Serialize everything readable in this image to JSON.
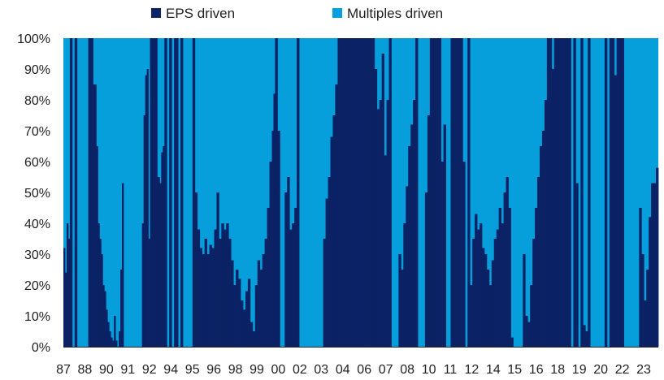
{
  "chart_data": {
    "type": "bar",
    "stacked": true,
    "normalized": true,
    "legend": [
      {
        "name": "EPS driven",
        "color": "#0b2265"
      },
      {
        "name": "Multiples driven",
        "color": "#079fdb"
      }
    ],
    "legend_position": "top",
    "ylim": [
      0,
      100
    ],
    "yticks": [
      "0%",
      "10%",
      "20%",
      "30%",
      "40%",
      "50%",
      "60%",
      "70%",
      "80%",
      "90%",
      "100%"
    ],
    "x_tick_labels": [
      "87",
      "88",
      "90",
      "91",
      "92",
      "94",
      "95",
      "96",
      "98",
      "99",
      "00",
      "02",
      "03",
      "04",
      "06",
      "07",
      "08",
      "10",
      "11",
      "12",
      "14",
      "15",
      "16",
      "18",
      "19",
      "20",
      "22",
      "23"
    ],
    "x_range": [
      1987.0,
      2024.1
    ],
    "series_name": "EPS driven",
    "points": [
      [
        1987.0,
        32
      ],
      [
        1987.1,
        24
      ],
      [
        1987.2,
        40
      ],
      [
        1987.3,
        35
      ],
      [
        1987.4,
        100
      ],
      [
        1987.55,
        0
      ],
      [
        1987.7,
        100
      ],
      [
        1987.85,
        0
      ],
      [
        1988.0,
        0
      ],
      [
        1988.2,
        0
      ],
      [
        1988.4,
        0
      ],
      [
        1988.55,
        100
      ],
      [
        1988.7,
        100
      ],
      [
        1988.85,
        85
      ],
      [
        1988.95,
        85
      ],
      [
        1989.05,
        65
      ],
      [
        1989.15,
        40
      ],
      [
        1989.25,
        35
      ],
      [
        1989.35,
        30
      ],
      [
        1989.45,
        20
      ],
      [
        1989.55,
        18
      ],
      [
        1989.65,
        12
      ],
      [
        1989.75,
        8
      ],
      [
        1989.85,
        5
      ],
      [
        1989.95,
        3
      ],
      [
        1990.05,
        2
      ],
      [
        1990.15,
        10
      ],
      [
        1990.25,
        2
      ],
      [
        1990.35,
        0
      ],
      [
        1990.45,
        5
      ],
      [
        1990.55,
        25
      ],
      [
        1990.65,
        53
      ],
      [
        1990.75,
        0
      ],
      [
        1990.85,
        0
      ],
      [
        1991.0,
        0
      ],
      [
        1991.2,
        0
      ],
      [
        1991.4,
        0
      ],
      [
        1991.6,
        0
      ],
      [
        1991.8,
        0
      ],
      [
        1991.9,
        40
      ],
      [
        1992.0,
        75
      ],
      [
        1992.1,
        88
      ],
      [
        1992.2,
        90
      ],
      [
        1992.3,
        35
      ],
      [
        1992.4,
        100
      ],
      [
        1992.55,
        100
      ],
      [
        1992.7,
        100
      ],
      [
        1992.85,
        55
      ],
      [
        1993.0,
        53
      ],
      [
        1993.1,
        63
      ],
      [
        1993.2,
        65
      ],
      [
        1993.3,
        100
      ],
      [
        1993.45,
        0
      ],
      [
        1993.6,
        100
      ],
      [
        1993.75,
        0
      ],
      [
        1993.9,
        100
      ],
      [
        1994.05,
        100
      ],
      [
        1994.15,
        0
      ],
      [
        1994.3,
        100
      ],
      [
        1994.45,
        0
      ],
      [
        1994.6,
        0
      ],
      [
        1994.75,
        0
      ],
      [
        1994.9,
        0
      ],
      [
        1995.05,
        100
      ],
      [
        1995.2,
        50
      ],
      [
        1995.35,
        38
      ],
      [
        1995.5,
        32
      ],
      [
        1995.65,
        30
      ],
      [
        1995.8,
        35
      ],
      [
        1995.95,
        30
      ],
      [
        1996.1,
        33
      ],
      [
        1996.25,
        32
      ],
      [
        1996.4,
        38
      ],
      [
        1996.55,
        50
      ],
      [
        1996.7,
        35
      ],
      [
        1996.85,
        40
      ],
      [
        1997.0,
        38
      ],
      [
        1997.15,
        40
      ],
      [
        1997.3,
        35
      ],
      [
        1997.45,
        28
      ],
      [
        1997.6,
        20
      ],
      [
        1997.75,
        25
      ],
      [
        1997.9,
        22
      ],
      [
        1998.05,
        15
      ],
      [
        1998.2,
        12
      ],
      [
        1998.35,
        18
      ],
      [
        1998.5,
        22
      ],
      [
        1998.65,
        8
      ],
      [
        1998.8,
        5
      ],
      [
        1998.95,
        20
      ],
      [
        1999.1,
        28
      ],
      [
        1999.25,
        25
      ],
      [
        1999.4,
        30
      ],
      [
        1999.55,
        35
      ],
      [
        1999.7,
        45
      ],
      [
        1999.85,
        60
      ],
      [
        2000.0,
        70
      ],
      [
        2000.1,
        82
      ],
      [
        2000.2,
        100
      ],
      [
        2000.35,
        70
      ],
      [
        2000.5,
        0
      ],
      [
        2000.65,
        0
      ],
      [
        2000.8,
        50
      ],
      [
        2000.95,
        55
      ],
      [
        2001.1,
        38
      ],
      [
        2001.25,
        40
      ],
      [
        2001.4,
        45
      ],
      [
        2001.55,
        100
      ],
      [
        2001.7,
        0
      ],
      [
        2001.85,
        0
      ],
      [
        2002.0,
        0
      ],
      [
        2002.2,
        0
      ],
      [
        2002.4,
        0
      ],
      [
        2002.6,
        0
      ],
      [
        2002.8,
        0
      ],
      [
        2003.0,
        0
      ],
      [
        2003.2,
        35
      ],
      [
        2003.35,
        48
      ],
      [
        2003.5,
        55
      ],
      [
        2003.65,
        68
      ],
      [
        2003.8,
        75
      ],
      [
        2003.95,
        85
      ],
      [
        2004.1,
        100
      ],
      [
        2004.4,
        100
      ],
      [
        2004.7,
        100
      ],
      [
        2005.0,
        100
      ],
      [
        2005.3,
        100
      ],
      [
        2005.6,
        100
      ],
      [
        2005.9,
        100
      ],
      [
        2006.2,
        100
      ],
      [
        2006.4,
        90
      ],
      [
        2006.55,
        77
      ],
      [
        2006.7,
        80
      ],
      [
        2006.85,
        95
      ],
      [
        2007.0,
        62
      ],
      [
        2007.15,
        80
      ],
      [
        2007.3,
        100
      ],
      [
        2007.45,
        0
      ],
      [
        2007.6,
        0
      ],
      [
        2007.75,
        0
      ],
      [
        2007.9,
        30
      ],
      [
        2008.05,
        25
      ],
      [
        2008.2,
        40
      ],
      [
        2008.35,
        52
      ],
      [
        2008.5,
        65
      ],
      [
        2008.65,
        72
      ],
      [
        2008.8,
        80
      ],
      [
        2008.95,
        100
      ],
      [
        2009.1,
        0
      ],
      [
        2009.25,
        0
      ],
      [
        2009.4,
        0
      ],
      [
        2009.55,
        50
      ],
      [
        2009.7,
        75
      ],
      [
        2009.85,
        100
      ],
      [
        2010.0,
        100
      ],
      [
        2010.2,
        100
      ],
      [
        2010.4,
        100
      ],
      [
        2010.55,
        60
      ],
      [
        2010.7,
        72
      ],
      [
        2010.85,
        0
      ],
      [
        2011.0,
        0
      ],
      [
        2011.15,
        100
      ],
      [
        2011.3,
        100
      ],
      [
        2011.45,
        100
      ],
      [
        2011.6,
        100
      ],
      [
        2011.75,
        100
      ],
      [
        2011.9,
        60
      ],
      [
        2012.05,
        0
      ],
      [
        2012.2,
        100
      ],
      [
        2012.35,
        20
      ],
      [
        2012.5,
        35
      ],
      [
        2012.65,
        43
      ],
      [
        2012.8,
        38
      ],
      [
        2012.95,
        40
      ],
      [
        2013.1,
        32
      ],
      [
        2013.25,
        30
      ],
      [
        2013.4,
        25
      ],
      [
        2013.55,
        20
      ],
      [
        2013.7,
        28
      ],
      [
        2013.85,
        35
      ],
      [
        2014.0,
        38
      ],
      [
        2014.15,
        45
      ],
      [
        2014.3,
        40
      ],
      [
        2014.45,
        50
      ],
      [
        2014.6,
        55
      ],
      [
        2014.75,
        45
      ],
      [
        2014.9,
        3
      ],
      [
        2015.05,
        0
      ],
      [
        2015.2,
        0
      ],
      [
        2015.35,
        0
      ],
      [
        2015.5,
        0
      ],
      [
        2015.65,
        30
      ],
      [
        2015.8,
        10
      ],
      [
        2015.95,
        8
      ],
      [
        2016.1,
        20
      ],
      [
        2016.25,
        35
      ],
      [
        2016.4,
        45
      ],
      [
        2016.55,
        55
      ],
      [
        2016.7,
        65
      ],
      [
        2016.85,
        70
      ],
      [
        2017.0,
        80
      ],
      [
        2017.15,
        100
      ],
      [
        2017.3,
        100
      ],
      [
        2017.45,
        90
      ],
      [
        2017.6,
        100
      ],
      [
        2017.75,
        100
      ],
      [
        2017.9,
        100
      ],
      [
        2018.05,
        100
      ],
      [
        2018.2,
        100
      ],
      [
        2018.35,
        100
      ],
      [
        2018.5,
        100
      ],
      [
        2018.65,
        0
      ],
      [
        2018.8,
        100
      ],
      [
        2018.95,
        53
      ],
      [
        2019.1,
        0
      ],
      [
        2019.25,
        100
      ],
      [
        2019.4,
        7
      ],
      [
        2019.55,
        5
      ],
      [
        2019.7,
        100
      ],
      [
        2019.85,
        0
      ],
      [
        2020.0,
        0
      ],
      [
        2020.15,
        0
      ],
      [
        2020.3,
        0
      ],
      [
        2020.45,
        0
      ],
      [
        2020.6,
        0
      ],
      [
        2020.75,
        100
      ],
      [
        2020.9,
        0
      ],
      [
        2021.05,
        100
      ],
      [
        2021.2,
        100
      ],
      [
        2021.35,
        88
      ],
      [
        2021.5,
        100
      ],
      [
        2021.65,
        100
      ],
      [
        2021.8,
        100
      ],
      [
        2021.95,
        0
      ],
      [
        2022.1,
        0
      ],
      [
        2022.3,
        0
      ],
      [
        2022.5,
        0
      ],
      [
        2022.7,
        0
      ],
      [
        2022.9,
        45
      ],
      [
        2023.05,
        30
      ],
      [
        2023.2,
        15
      ],
      [
        2023.35,
        25
      ],
      [
        2023.5,
        42
      ],
      [
        2023.65,
        53
      ],
      [
        2023.8,
        53
      ],
      [
        2023.95,
        58
      ]
    ]
  }
}
